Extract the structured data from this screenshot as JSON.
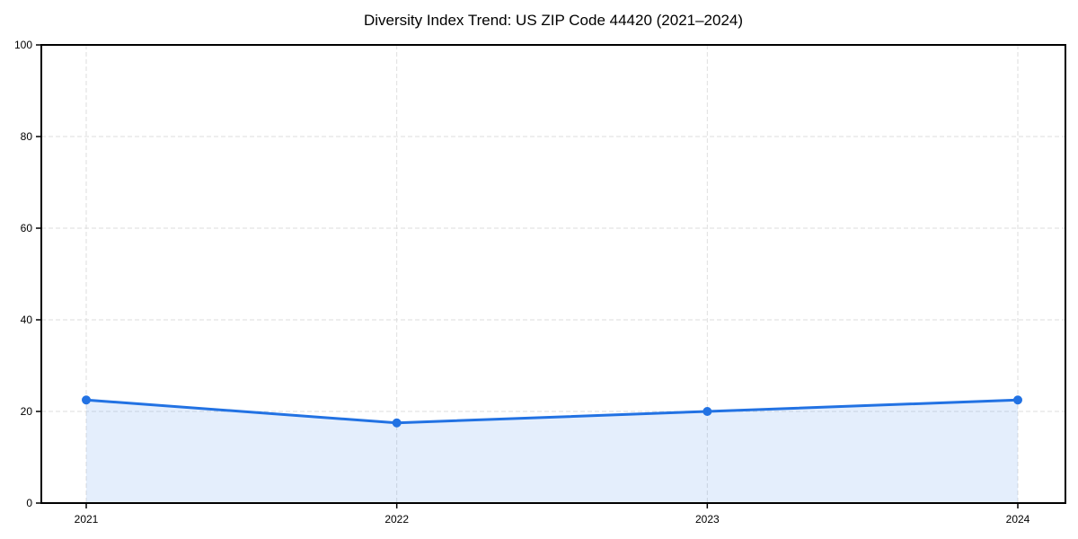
{
  "chart": {
    "title": "Diversity Index Trend: US ZIP Code 44420 (2021–2024)"
  },
  "chart_data": {
    "type": "area",
    "title": "Diversity Index Trend: US ZIP Code 44420 (2021–2024)",
    "series_name": "Diversity Index",
    "categories": [
      "2021",
      "2022",
      "2023",
      "2024"
    ],
    "values": [
      22.5,
      17.5,
      20.0,
      22.5
    ],
    "xlabel": "",
    "ylabel": "",
    "ylim": [
      0,
      100
    ],
    "y_ticks": [
      0,
      20,
      40,
      60,
      80,
      100
    ],
    "grid": true,
    "grid_style": "dashed",
    "legend": "none",
    "marker": "circle",
    "colors": {
      "line": "#2272e3",
      "marker": "#2272e3",
      "fill": "rgba(34,114,227,0.12)",
      "grid": "#dedede",
      "axis": "#000000",
      "background": "#ffffff"
    }
  }
}
